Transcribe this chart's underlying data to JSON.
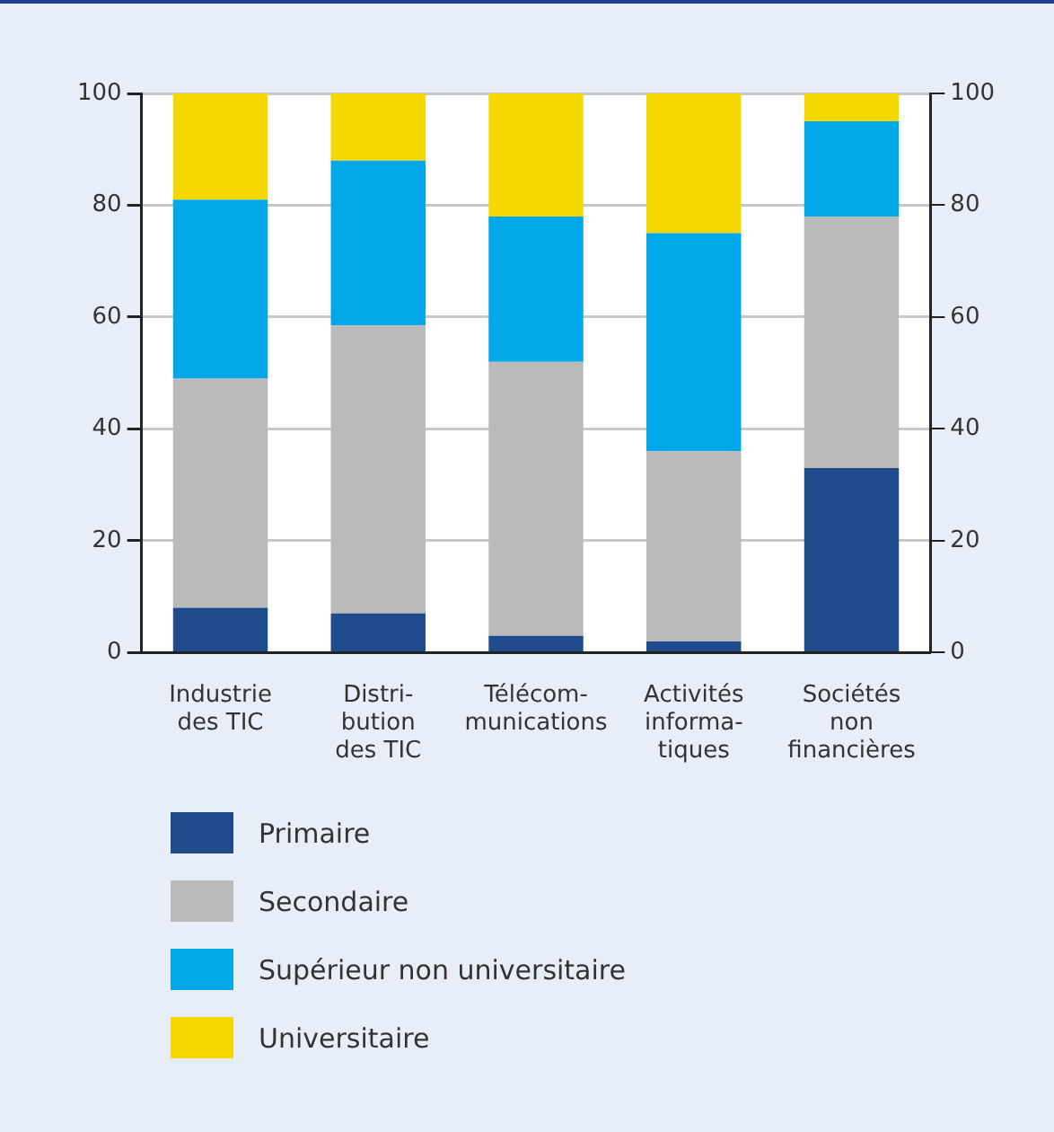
{
  "chart_data": {
    "type": "bar",
    "stacked": true,
    "categories": [
      "Industrie\ndes TIC",
      "Distri-\nbution\ndes TIC",
      "Télécom-\nmunications",
      "Activités\ninforma-\ntiques",
      "Sociétés\nnon\nfinancières"
    ],
    "series": [
      {
        "name": "Primaire",
        "color": "#1f4a8c",
        "values": [
          8,
          7,
          3,
          2,
          33
        ]
      },
      {
        "name": "Secondaire",
        "color": "#bababa",
        "values": [
          41,
          51.5,
          49,
          34,
          45
        ]
      },
      {
        "name": "Supérieur non universitaire",
        "color": "#00a8e8",
        "values": [
          32,
          29.5,
          26,
          39,
          17
        ]
      },
      {
        "name": "Universitaire",
        "color": "#f5d800",
        "values": [
          19,
          12,
          22,
          25,
          5
        ]
      }
    ],
    "ylim": [
      0,
      100
    ],
    "yticks": [
      0,
      20,
      40,
      60,
      80,
      100
    ],
    "y2lim": [
      0,
      100
    ],
    "y2ticks": [
      0,
      20,
      40,
      60,
      80,
      100
    ],
    "grid": "y",
    "legend": "bottom"
  }
}
